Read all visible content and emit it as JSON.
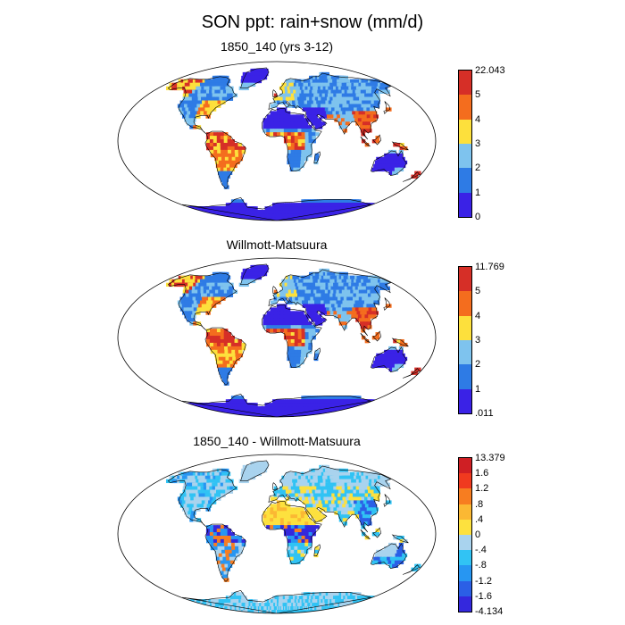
{
  "title": "SON ppt: rain+snow (mm/d)",
  "panels": [
    {
      "id": "model",
      "title": "1850_140 (yrs 3-12)",
      "colorbar": {
        "labels": [
          "22.043",
          "5",
          "4",
          "3",
          "2",
          "1",
          "0"
        ],
        "colors": [
          "#d62f27",
          "#f46d1e",
          "#fde03c",
          "#7ec3ee",
          "#2e7be5",
          "#3a22e6"
        ]
      }
    },
    {
      "id": "obs",
      "title": "Willmott-Matsuura",
      "colorbar": {
        "labels": [
          "11.769",
          "5",
          "4",
          "3",
          "2",
          "1",
          ".011"
        ],
        "colors": [
          "#d62f27",
          "#f46d1e",
          "#fde03c",
          "#7ec3ee",
          "#2e7be5",
          "#3a22e6"
        ]
      }
    },
    {
      "id": "diff",
      "title": "1850_140 - Willmott-Matsuura",
      "colorbar": {
        "labels": [
          "13.379",
          "1.6",
          "1.2",
          ".8",
          ".4",
          "0",
          "-.4",
          "-.8",
          "-1.2",
          "-1.6",
          "-4.134"
        ],
        "colors": [
          "#cf1f24",
          "#f03a1f",
          "#f77d20",
          "#fbb833",
          "#fde13e",
          "#a9d3ee",
          "#31c3f4",
          "#2796f2",
          "#2b5fe6",
          "#3428dd"
        ]
      }
    }
  ]
}
